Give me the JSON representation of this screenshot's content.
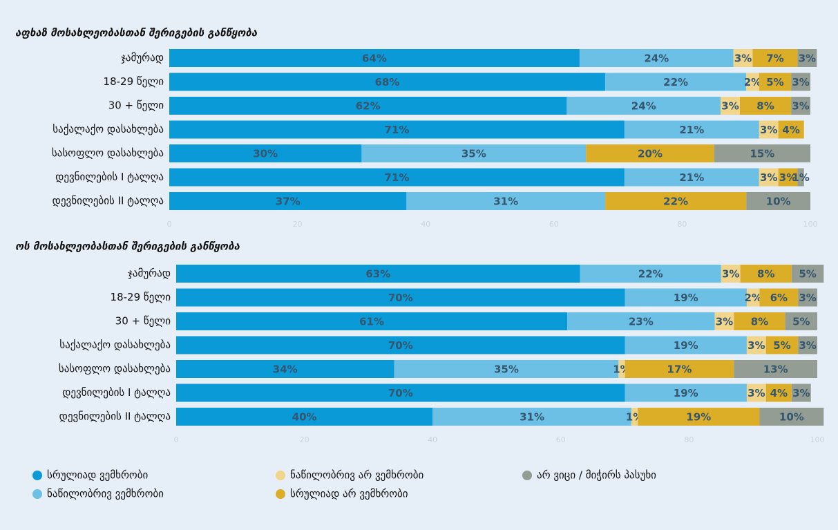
{
  "chart_data": [
    {
      "type": "stacked_barh",
      "title": "აფხაზ მოსახლეობასთან შერიგების განწყობა",
      "categories": [
        "ჯამურად",
        "18-29 წელი",
        "30 + წელი",
        "საქალაქო დასახლება",
        "სასოფლო დასახლება",
        "დევნილების I ტალღა",
        "დევნილების II ტალღა"
      ],
      "series": [
        {
          "name": "სრულიად ვემხრობი",
          "color": "#0a9ad8",
          "values": [
            64,
            68,
            62,
            71,
            30,
            71,
            37
          ],
          "value_labels": [
            "64%",
            "68%",
            "62%",
            "71%",
            "30%",
            "71%",
            "37%"
          ]
        },
        {
          "name": "ნაწილობრივ ვემხრობი",
          "color": "#6cc0e5",
          "values": [
            24,
            22,
            24,
            21,
            35,
            21,
            31
          ],
          "value_labels": [
            "24%",
            "22%",
            "24%",
            "21%",
            "35%",
            "21%",
            "31%"
          ]
        },
        {
          "name": "ნაწილობრივ არ ვემხრობი",
          "color": "#f0d58a",
          "values": [
            3,
            2,
            3,
            3,
            null,
            3,
            null
          ],
          "value_labels": [
            "3%",
            "2%",
            "3%",
            "3%",
            null,
            "3%",
            null
          ]
        },
        {
          "name": "სრულიად არ ვემხრობი",
          "color": "#dcae28",
          "values": [
            7,
            5,
            8,
            4,
            20,
            3,
            22
          ],
          "value_labels": [
            "7%",
            "5%",
            "8%",
            "4%",
            "20%",
            "3%",
            "22%"
          ]
        },
        {
          "name": "არ ვიცი / მიჭირს პასუხი",
          "color": "#939d94",
          "values": [
            3,
            3,
            3,
            null,
            15,
            1,
            10
          ],
          "value_labels": [
            "3%",
            "3%",
            "3%",
            null,
            "15%",
            "1%",
            "10%"
          ]
        }
      ],
      "xlim": [
        0,
        100
      ],
      "xticks": [
        0,
        20,
        40,
        60,
        80,
        100
      ]
    },
    {
      "type": "stacked_barh",
      "title": "ოს მოსახლეობასთან შერიგების განწყობა",
      "categories": [
        "ჯამურად",
        "18-29 წელი",
        "30 + წელი",
        "საქალაქო დასახლება",
        "სასოფლო დასახლება",
        "დევნილების I ტალღა",
        "დევნილების II ტალღა"
      ],
      "series": [
        {
          "color": "#0a9ad8",
          "values": [
            63,
            70,
            61,
            70,
            34,
            70,
            40
          ],
          "value_labels": [
            "63%",
            "70%",
            "61%",
            "70%",
            "34%",
            "70%",
            "40%"
          ]
        },
        {
          "color": "#6cc0e5",
          "values": [
            22,
            19,
            23,
            19,
            35,
            19,
            31
          ],
          "value_labels": [
            "22%",
            "19%",
            "23%",
            "19%",
            "35%",
            "19%",
            "31%"
          ]
        },
        {
          "color": "#f0d58a",
          "values": [
            3,
            2,
            3,
            3,
            1,
            3,
            1
          ],
          "value_labels": [
            "3%",
            "2%",
            "3%",
            "3%",
            "1%",
            "3%",
            "1%"
          ]
        },
        {
          "color": "#dcae28",
          "values": [
            8,
            6,
            8,
            5,
            17,
            4,
            19
          ],
          "value_labels": [
            "8%",
            "6%",
            "8%",
            "5%",
            "17%",
            "4%",
            "19%"
          ]
        },
        {
          "color": "#939d94",
          "values": [
            5,
            3,
            5,
            3,
            13,
            3,
            10
          ],
          "value_labels": [
            "5%",
            "3%",
            "5%",
            "3%",
            "13%",
            "3%",
            "10%"
          ]
        }
      ],
      "xlim": [
        0,
        100
      ],
      "xticks": [
        0,
        20,
        40,
        60,
        80,
        100
      ]
    }
  ]
}
